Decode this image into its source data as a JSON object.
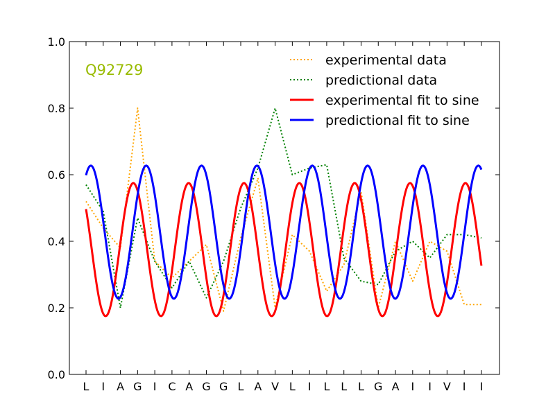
{
  "chart_data": {
    "type": "line",
    "categories": [
      "L",
      "I",
      "A",
      "G",
      "I",
      "C",
      "A",
      "G",
      "G",
      "L",
      "A",
      "V",
      "L",
      "I",
      "L",
      "L",
      "L",
      "G",
      "A",
      "I",
      "I",
      "V",
      "I",
      "I"
    ],
    "ylim": [
      0,
      1
    ],
    "yticks": [
      {
        "value": 0.0,
        "label": "0.0"
      },
      {
        "value": 0.2,
        "label": "0.2"
      },
      {
        "value": 0.4,
        "label": "0.4"
      },
      {
        "value": 0.6,
        "label": "0.6"
      },
      {
        "value": 0.8,
        "label": "0.8"
      },
      {
        "value": 1.0,
        "label": "1.0"
      }
    ],
    "annotation": {
      "text": "Q92729",
      "color": "#99bb00"
    },
    "legend_position": "top-right",
    "grid": false,
    "series": [
      {
        "name": "experimental data",
        "style": "dotted",
        "color": "#ffa500",
        "values": [
          0.52,
          0.44,
          0.38,
          0.8,
          0.34,
          0.29,
          0.34,
          0.39,
          0.19,
          0.41,
          0.59,
          0.2,
          0.42,
          0.37,
          0.25,
          0.33,
          0.55,
          0.2,
          0.4,
          0.28,
          0.4,
          0.37,
          0.21,
          0.21
        ]
      },
      {
        "name": "predictional data",
        "style": "dotted",
        "color": "#008000",
        "values": [
          0.57,
          0.49,
          0.2,
          0.47,
          0.34,
          0.26,
          0.34,
          0.23,
          0.34,
          0.5,
          0.62,
          0.8,
          0.6,
          0.62,
          0.63,
          0.35,
          0.28,
          0.27,
          0.37,
          0.4,
          0.35,
          0.42,
          0.42,
          0.41
        ]
      },
      {
        "name": "experimental fit to sine",
        "style": "solid",
        "color": "#ff0000",
        "fit": {
          "offset": 0.375,
          "amplitude": 0.2,
          "period": 3.22,
          "peak_x": 2.75
        }
      },
      {
        "name": "predictional fit to sine",
        "style": "solid",
        "color": "#0000ff",
        "fit": {
          "offset": 0.4275,
          "amplitude": 0.2,
          "period": 3.22,
          "peak_x": 3.5
        }
      }
    ]
  }
}
